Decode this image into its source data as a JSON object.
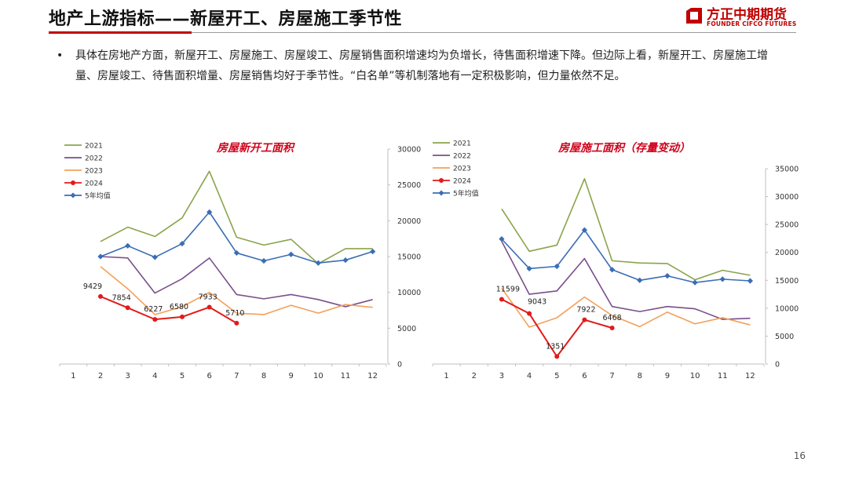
{
  "slide": {
    "title": "地产上游指标——新屋开工、房屋施工季节性",
    "logo_cn": "方正中期期货",
    "logo_en": "FOUNDER CIFCO FUTURES",
    "bullet": "•",
    "body": "具体在房地产方面，新屋开工、房屋施工、房屋竣工、房屋销售面积增速均为负增长，待售面积增速下降。但边际上看，新屋开工、房屋施工增量、房屋竣工、待售面积增量、房屋销售均好于季节性。“白名单”等机制落地有一定积极影响，但力量依然不足。",
    "page_number": "16",
    "colors": {
      "accent": "#c00000",
      "y2021": "#8aa44a",
      "y2022": "#7a4f8c",
      "y2023": "#f4a05a",
      "y2024": "#e31a1a",
      "avg": "#3a6db5"
    }
  },
  "chart_data": [
    {
      "type": "line",
      "title": "房屋新开工面积",
      "x": [
        1,
        2,
        3,
        4,
        5,
        6,
        7,
        8,
        9,
        10,
        11,
        12
      ],
      "ylim": [
        0,
        30000
      ],
      "yticks": [
        0,
        5000,
        10000,
        15000,
        20000,
        25000,
        30000
      ],
      "y_axis_side": "right",
      "legend_position": "top-left",
      "series": [
        {
          "name": "2021",
          "color": "#8aa44a",
          "values": [
            null,
            17100,
            19100,
            17800,
            20400,
            26900,
            17700,
            16600,
            17400,
            14000,
            16100,
            16100
          ]
        },
        {
          "name": "2022",
          "color": "#7a4f8c",
          "values": [
            null,
            15000,
            14800,
            9900,
            11900,
            14800,
            9700,
            9100,
            9700,
            9000,
            8000,
            9000
          ]
        },
        {
          "name": "2023",
          "color": "#f4a05a",
          "values": [
            null,
            13600,
            10500,
            6900,
            8000,
            10000,
            7100,
            6900,
            8200,
            7100,
            8300,
            7900
          ]
        },
        {
          "name": "2024",
          "color": "#e31a1a",
          "marker": "circle",
          "values": [
            null,
            9429,
            7854,
            6227,
            6580,
            7933,
            5710,
            null,
            null,
            null,
            null,
            null
          ]
        },
        {
          "name": "5年均值",
          "color": "#3a6db5",
          "marker": "diamond",
          "values": [
            null,
            15000,
            16500,
            14900,
            16800,
            21200,
            15500,
            14400,
            15300,
            14100,
            14500,
            15700
          ]
        }
      ],
      "annotations": [
        {
          "x": 2,
          "label": "9429"
        },
        {
          "x": 3,
          "label": "7854"
        },
        {
          "x": 4,
          "label": "6227"
        },
        {
          "x": 5,
          "label": "6580"
        },
        {
          "x": 6,
          "label": "7933"
        },
        {
          "x": 7,
          "label": "5710"
        }
      ]
    },
    {
      "type": "line",
      "title": "房屋施工面积（存量变动）",
      "x": [
        1,
        2,
        3,
        4,
        5,
        6,
        7,
        8,
        9,
        10,
        11,
        12
      ],
      "ylim": [
        0,
        35000
      ],
      "yticks": [
        0,
        5000,
        10000,
        15000,
        20000,
        25000,
        30000,
        35000
      ],
      "y_axis_side": "right",
      "legend_position": "top-left",
      "series": [
        {
          "name": "2021",
          "color": "#8aa44a",
          "values": [
            null,
            null,
            27800,
            20200,
            21300,
            33200,
            18500,
            18100,
            18000,
            15100,
            16800,
            15900
          ]
        },
        {
          "name": "2022",
          "color": "#7a4f8c",
          "values": [
            null,
            null,
            22000,
            12500,
            13100,
            18900,
            10300,
            9400,
            10300,
            9900,
            8000,
            8200
          ]
        },
        {
          "name": "2023",
          "color": "#f4a05a",
          "values": [
            null,
            null,
            13600,
            6600,
            8300,
            12000,
            8700,
            6700,
            9300,
            7200,
            8300,
            7000
          ]
        },
        {
          "name": "2024",
          "color": "#e31a1a",
          "marker": "circle",
          "values": [
            null,
            null,
            11599,
            9043,
            1351,
            7922,
            6468,
            null,
            null,
            null,
            null,
            null
          ]
        },
        {
          "name": "5年均值",
          "color": "#3a6db5",
          "marker": "diamond",
          "values": [
            null,
            null,
            22400,
            17100,
            17500,
            24000,
            16900,
            15000,
            15800,
            14600,
            15200,
            14900
          ]
        }
      ],
      "annotations": [
        {
          "x": 3,
          "label": "11599"
        },
        {
          "x": 4,
          "label": "9043"
        },
        {
          "x": 5,
          "label": "1351"
        },
        {
          "x": 6,
          "label": "7922"
        },
        {
          "x": 7,
          "label": "6468"
        }
      ]
    }
  ]
}
